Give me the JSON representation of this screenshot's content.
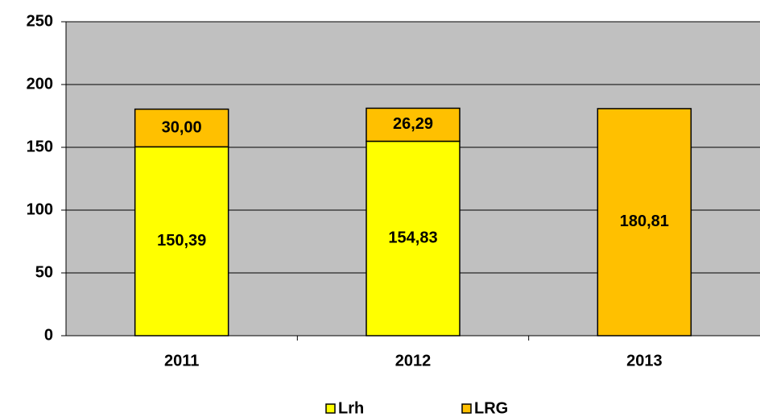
{
  "chart_data": {
    "type": "bar",
    "stacked": true,
    "categories": [
      "2011",
      "2012",
      "2013"
    ],
    "series": [
      {
        "name": "Lrh",
        "color": "#ffff00",
        "values": [
          150.39,
          154.83,
          null
        ],
        "value_labels": [
          "150,39",
          "154,83",
          null
        ]
      },
      {
        "name": "LRG",
        "color": "#ffc000",
        "values": [
          30.0,
          26.29,
          180.81
        ],
        "value_labels": [
          "30,00",
          "26,29",
          "180,81"
        ]
      }
    ],
    "ylim": [
      0,
      250
    ],
    "yticks": [
      0,
      50,
      100,
      150,
      200,
      250
    ],
    "grid": true,
    "legend": "bottom"
  }
}
